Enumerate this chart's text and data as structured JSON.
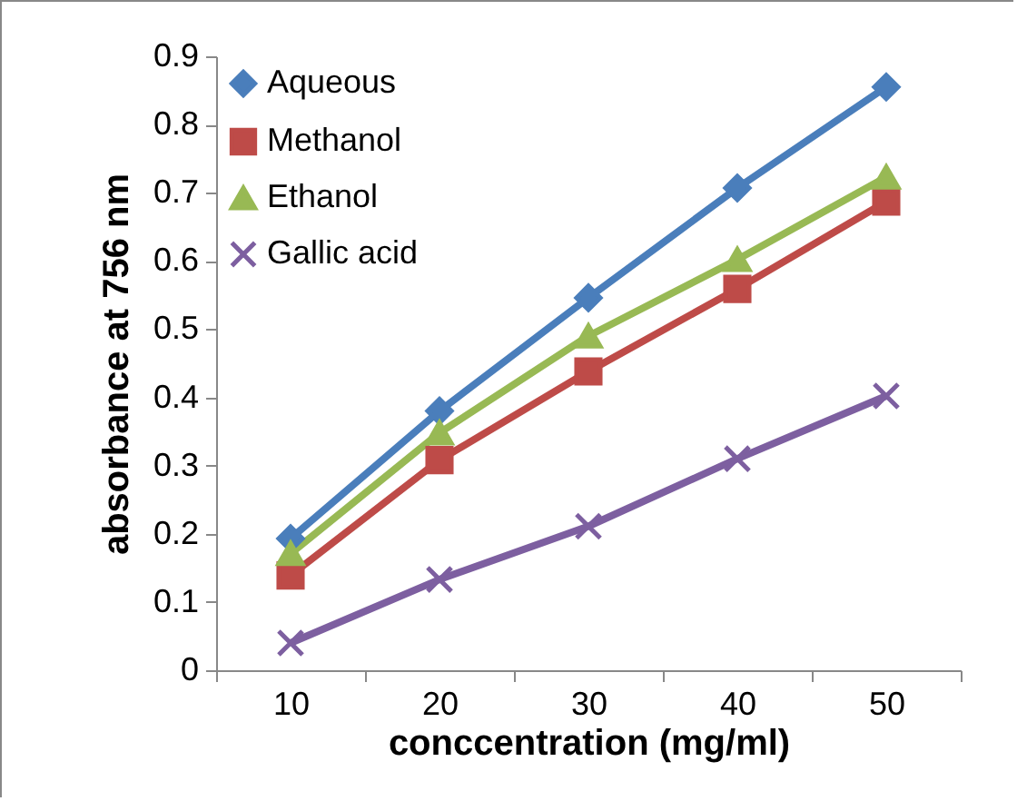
{
  "chart_data": {
    "type": "line",
    "xlabel": "conccentration (mg/ml)",
    "ylabel": "absorbance at 756 nm",
    "categories": [
      "10",
      "20",
      "30",
      "40",
      "50"
    ],
    "series": [
      {
        "name": "Aqueous",
        "color": "#4a7ebb",
        "marker": "diamond",
        "values": [
          0.193,
          0.38,
          0.546,
          0.707,
          0.855
        ]
      },
      {
        "name": "Methanol",
        "color": "#be4b48",
        "marker": "square",
        "values": [
          0.139,
          0.308,
          0.438,
          0.559,
          0.687
        ]
      },
      {
        "name": "Ethanol",
        "color": "#98b954",
        "marker": "triangle",
        "values": [
          0.171,
          0.348,
          0.49,
          0.602,
          0.723
        ]
      },
      {
        "name": "Gallic acid",
        "color": "#7d5fa0",
        "marker": "cross",
        "values": [
          0.04,
          0.133,
          0.211,
          0.31,
          0.402
        ]
      }
    ],
    "ylim": [
      0,
      0.9
    ],
    "yticks": [
      0,
      0.1,
      0.2,
      0.3,
      0.4,
      0.5,
      0.6,
      0.7,
      0.8,
      0.9
    ],
    "grid": false,
    "legend": "top left"
  }
}
